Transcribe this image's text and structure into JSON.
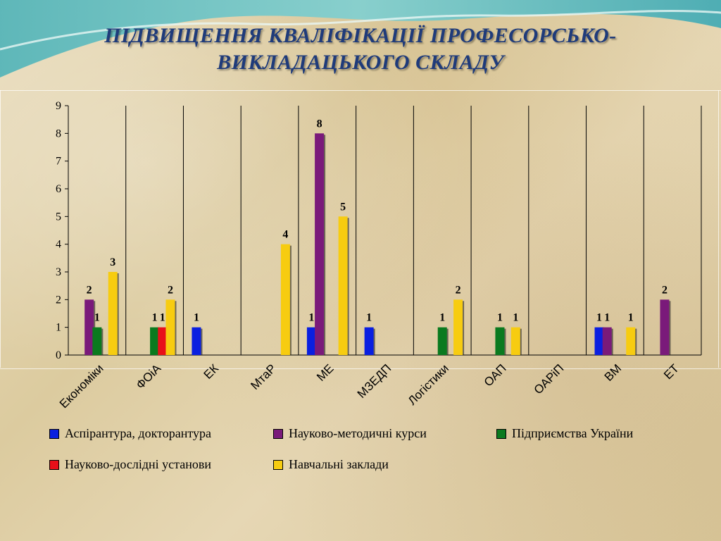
{
  "title_line1": "ПІДВИЩЕННЯ КВАЛІФІКАЦІЇ ПРОФЕСОРСЬКО-",
  "title_line2": "ВИКЛАДАЦЬКОГО СКЛАДУ",
  "colors": {
    "aspirantura": "#0a1fe0",
    "metod": "#7a1a7a",
    "pidpr": "#0a7a1f",
    "ndu": "#e8101a",
    "navch": "#f7cc10"
  },
  "chart_data": {
    "type": "bar",
    "title": "ПІДВИЩЕННЯ КВАЛІФІКАЦІЇ ПРОФЕСОРСЬКО-ВИКЛАДАЦЬКОГО СКЛАДУ",
    "xlabel": "",
    "ylabel": "",
    "ylim": [
      0,
      9
    ],
    "yticks": [
      0,
      1,
      2,
      3,
      4,
      5,
      6,
      7,
      8,
      9
    ],
    "grid": false,
    "legend_position": "bottom",
    "categories": [
      "Економіки",
      "ФОіА",
      "ЕК",
      "МтаР",
      "МЕ",
      "МЗЕДП",
      "Логістики",
      "ОАП",
      "ОАРіП",
      "ВМ",
      "ЕТ"
    ],
    "series": [
      {
        "name": "Аспірантура, докторантура",
        "color_key": "aspirantura",
        "values": [
          0,
          0,
          1,
          0,
          1,
          1,
          0,
          0,
          0,
          1,
          0
        ]
      },
      {
        "name": "Науково-методичні курси",
        "color_key": "metod",
        "values": [
          2,
          0,
          0,
          0,
          8,
          0,
          0,
          0,
          0,
          1,
          2
        ]
      },
      {
        "name": "Підприємства України",
        "color_key": "pidpr",
        "values": [
          1,
          1,
          0,
          0,
          0,
          0,
          1,
          1,
          0,
          0,
          0
        ]
      },
      {
        "name": "Науково-дослідні установи",
        "color_key": "ndu",
        "values": [
          0,
          1,
          0,
          0,
          0,
          0,
          0,
          0,
          0,
          0,
          0
        ]
      },
      {
        "name": "Навчальні заклади",
        "color_key": "navch",
        "values": [
          3,
          2,
          0,
          4,
          5,
          0,
          2,
          1,
          0,
          1,
          0
        ]
      }
    ]
  }
}
